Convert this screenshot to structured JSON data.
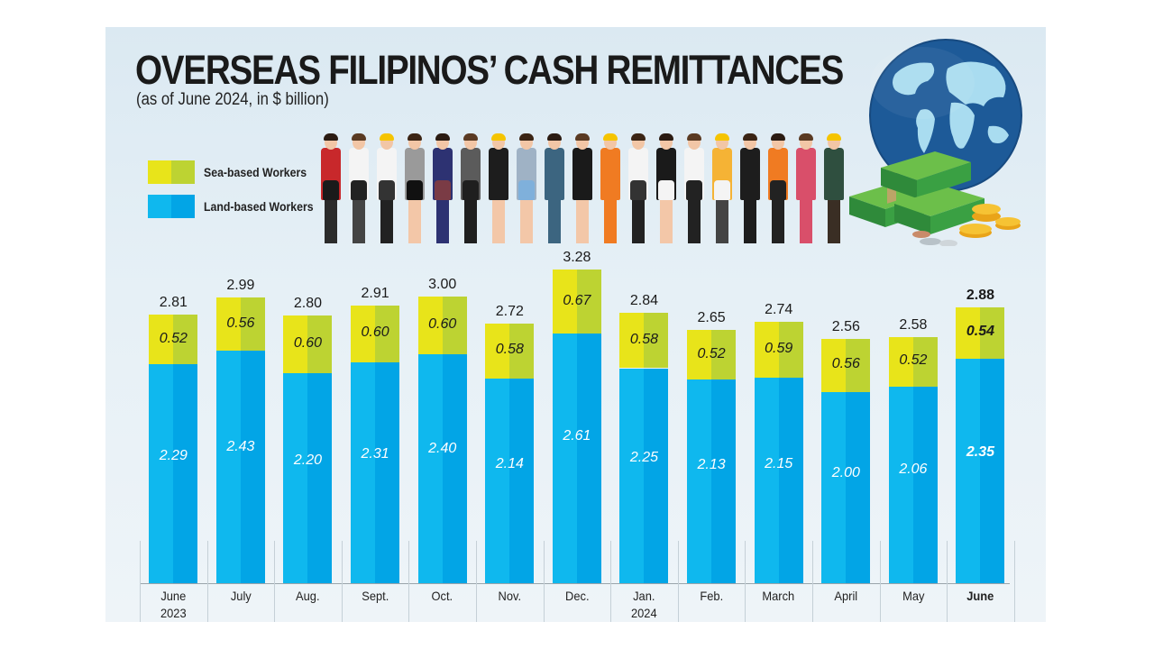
{
  "header": {
    "title": "OVERSEAS FILIPINOS’ CASH REMITTANCES",
    "subtitle": "(as of June 2024, in $ billion)"
  },
  "legend": {
    "sea_label": "Sea-based Workers",
    "land_label": "Land-based Workers"
  },
  "colors": {
    "sea_light": "#e8e41a",
    "sea_dark": "#bdd332",
    "land_light": "#0fb8ee",
    "land_dark": "#02a5e6",
    "background": "#e3eef5"
  },
  "illustration": {
    "icons": [
      "workers-group-icon",
      "globe-icon",
      "money-stack-icon",
      "coins-icon"
    ]
  },
  "chart_data": {
    "type": "bar",
    "stacked": true,
    "title": "OVERSEAS FILIPINOS’ CASH REMITTANCES",
    "subtitle": "(as of June 2024, in $ billion)",
    "xlabel": "",
    "ylabel": "$ billion",
    "ylim": [
      0,
      3.5
    ],
    "grid": false,
    "legend_position": "top-left",
    "categories": [
      "June 2023",
      "July",
      "Aug.",
      "Sept.",
      "Oct.",
      "Nov.",
      "Dec.",
      "Jan. 2024",
      "Feb.",
      "March",
      "April",
      "May",
      "June"
    ],
    "category_lines": [
      [
        "June",
        "2023"
      ],
      [
        "July"
      ],
      [
        "Aug."
      ],
      [
        "Sept."
      ],
      [
        "Oct."
      ],
      [
        "Nov."
      ],
      [
        "Dec."
      ],
      [
        "Jan.",
        "2024"
      ],
      [
        "Feb."
      ],
      [
        "March"
      ],
      [
        "April"
      ],
      [
        "May"
      ],
      [
        "June"
      ]
    ],
    "series": [
      {
        "name": "Land-based Workers",
        "values": [
          2.29,
          2.43,
          2.2,
          2.31,
          2.4,
          2.14,
          2.61,
          2.25,
          2.13,
          2.15,
          2.0,
          2.06,
          2.35
        ]
      },
      {
        "name": "Sea-based Workers",
        "values": [
          0.52,
          0.56,
          0.6,
          0.6,
          0.6,
          0.58,
          0.67,
          0.58,
          0.52,
          0.59,
          0.56,
          0.52,
          0.54
        ]
      }
    ],
    "totals": [
      2.81,
      2.99,
      2.8,
      2.91,
      3.0,
      2.72,
      3.28,
      2.84,
      2.65,
      2.74,
      2.56,
      2.58,
      2.88
    ],
    "labels": {
      "land": [
        "2.29",
        "2.43",
        "2.20",
        "2.31",
        "2.40",
        "2.14",
        "2.61",
        "2.25",
        "2.13",
        "2.15",
        "2.00",
        "2.06",
        "2.35"
      ],
      "sea": [
        "0.52",
        "0.56",
        "0.60",
        "0.60",
        "0.60",
        "0.58",
        "0.67",
        "0.58",
        "0.52",
        "0.59",
        "0.56",
        "0.52",
        "0.54"
      ],
      "total": [
        "2.81",
        "2.99",
        "2.80",
        "2.91",
        "3.00",
        "2.72",
        "3.28",
        "2.84",
        "2.65",
        "2.74",
        "2.56",
        "2.58",
        "2.88"
      ]
    },
    "highlight_last": true
  }
}
